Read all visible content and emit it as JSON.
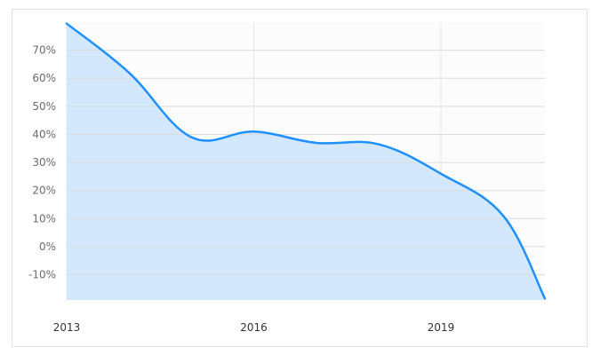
{
  "chart_data": {
    "type": "area",
    "x": [
      2013,
      2014,
      2015,
      2016,
      2017,
      2018,
      2019,
      2020,
      2020.667
    ],
    "values": [
      79.5,
      62,
      39,
      41,
      37,
      36.5,
      26,
      11,
      -18.5
    ],
    "ylim": [
      -19,
      80
    ],
    "xlim": [
      2013,
      2020.667
    ],
    "yticks": [
      -10,
      0,
      10,
      20,
      30,
      40,
      50,
      60,
      70
    ],
    "ytick_labels": [
      "-10%",
      "0%",
      "10%",
      "20%",
      "30%",
      "40%",
      "50%",
      "60%",
      "70%"
    ],
    "xticks": [
      2013,
      2016,
      2019
    ],
    "xtick_labels": [
      "2013",
      "2016",
      "2019"
    ],
    "title": "",
    "xlabel": "",
    "ylabel": "",
    "grid": true,
    "legend": "none",
    "colors": {
      "line": "#1e90ff",
      "fill": "#d3e8fd",
      "plot_background": "#fcfcfc",
      "grid": "#dcdcdc",
      "border": "#e3e3e3"
    }
  }
}
